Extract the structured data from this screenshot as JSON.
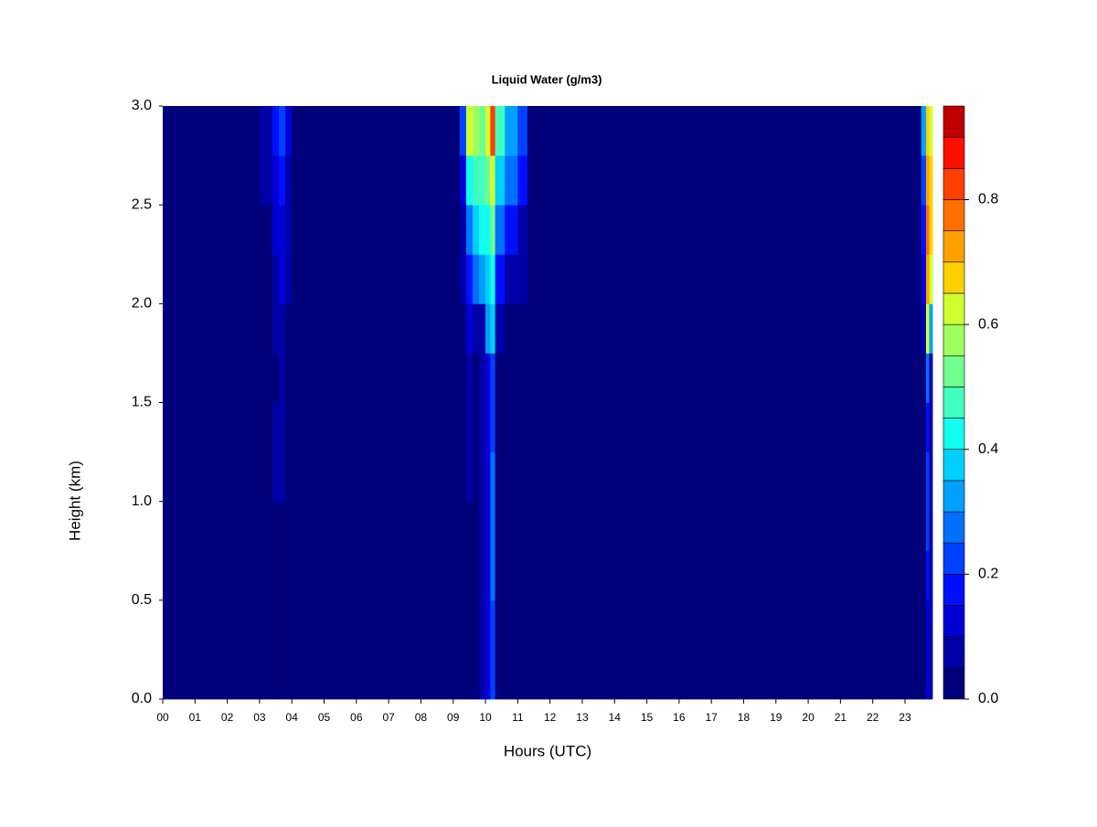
{
  "chart_data": {
    "type": "heatmap",
    "title": "Liquid Water (g/m3)",
    "x_label": "Hours (UTC)",
    "y_label": "Height (km)",
    "xlim": [
      0,
      23.85
    ],
    "ylim": [
      0,
      3
    ],
    "xticks": [
      {
        "value": 0,
        "label": "00"
      },
      {
        "value": 1,
        "label": "01"
      },
      {
        "value": 2,
        "label": "02"
      },
      {
        "value": 3,
        "label": "03"
      },
      {
        "value": 4,
        "label": "04"
      },
      {
        "value": 5,
        "label": "05"
      },
      {
        "value": 6,
        "label": "06"
      },
      {
        "value": 7,
        "label": "07"
      },
      {
        "value": 8,
        "label": "08"
      },
      {
        "value": 9,
        "label": "09"
      },
      {
        "value": 10,
        "label": "10"
      },
      {
        "value": 11,
        "label": "11"
      },
      {
        "value": 12,
        "label": "12"
      },
      {
        "value": 13,
        "label": "13"
      },
      {
        "value": 14,
        "label": "14"
      },
      {
        "value": 15,
        "label": "15"
      },
      {
        "value": 16,
        "label": "16"
      },
      {
        "value": 17,
        "label": "17"
      },
      {
        "value": 18,
        "label": "18"
      },
      {
        "value": 19,
        "label": "19"
      },
      {
        "value": 20,
        "label": "20"
      },
      {
        "value": 21,
        "label": "21"
      },
      {
        "value": 22,
        "label": "22"
      },
      {
        "value": 23,
        "label": "23"
      }
    ],
    "yticks": [
      {
        "value": 0,
        "label": "0.0"
      },
      0.5,
      {
        "value": 1,
        "label": "1.0"
      },
      1.5,
      {
        "value": 2,
        "label": "2.0"
      },
      2.5,
      {
        "value": 3,
        "label": "3.0"
      }
    ],
    "x_edges": [
      0,
      3.0,
      3.4,
      3.6,
      3.8,
      4.0,
      9.2,
      9.4,
      9.6,
      9.8,
      10.0,
      10.15,
      10.3,
      10.6,
      11.0,
      11.3,
      23.5,
      23.65,
      23.75,
      23.85
    ],
    "y_edges": [
      0,
      0.25,
      0.5,
      0.75,
      1.0,
      1.25,
      1.5,
      1.75,
      2.0,
      2.25,
      2.5,
      2.75,
      3.0
    ],
    "z": [
      [
        0.02,
        0.02,
        0.02,
        0.02,
        0.02,
        0.02,
        0.03,
        0.04,
        0.03,
        0.05,
        0.1,
        0.2,
        0.03,
        0.02,
        0.02,
        0.02,
        0.04,
        0.12,
        0.06
      ],
      [
        0.02,
        0.02,
        0.02,
        0.02,
        0.02,
        0.02,
        0.03,
        0.04,
        0.03,
        0.05,
        0.1,
        0.2,
        0.03,
        0.02,
        0.02,
        0.02,
        0.04,
        0.12,
        0.06
      ],
      [
        0.02,
        0.02,
        0.02,
        0.02,
        0.02,
        0.02,
        0.03,
        0.04,
        0.03,
        0.05,
        0.1,
        0.25,
        0.03,
        0.02,
        0.02,
        0.02,
        0.04,
        0.15,
        0.06
      ],
      [
        0.02,
        0.02,
        0.02,
        0.03,
        0.02,
        0.02,
        0.03,
        0.04,
        0.03,
        0.05,
        0.1,
        0.25,
        0.03,
        0.02,
        0.02,
        0.02,
        0.04,
        0.2,
        0.06
      ],
      [
        0.02,
        0.02,
        0.05,
        0.07,
        0.02,
        0.02,
        0.03,
        0.05,
        0.03,
        0.05,
        0.1,
        0.25,
        0.03,
        0.02,
        0.02,
        0.02,
        0.04,
        0.2,
        0.06
      ],
      [
        0.02,
        0.02,
        0.05,
        0.06,
        0.02,
        0.02,
        0.03,
        0.06,
        0.03,
        0.05,
        0.1,
        0.2,
        0.03,
        0.02,
        0.02,
        0.02,
        0.04,
        0.18,
        0.06
      ],
      [
        0.02,
        0.02,
        0.04,
        0.07,
        0.02,
        0.02,
        0.03,
        0.07,
        0.04,
        0.05,
        0.12,
        0.2,
        0.04,
        0.02,
        0.02,
        0.02,
        0.04,
        0.25,
        0.06
      ],
      [
        0.02,
        0.02,
        0.05,
        0.08,
        0.03,
        0.02,
        0.03,
        0.12,
        0.06,
        0.08,
        0.3,
        0.35,
        0.08,
        0.03,
        0.02,
        0.02,
        0.05,
        0.6,
        0.3
      ],
      [
        0.02,
        0.03,
        0.08,
        0.12,
        0.05,
        0.02,
        0.05,
        0.18,
        0.25,
        0.3,
        0.35,
        0.4,
        0.15,
        0.08,
        0.05,
        0.02,
        0.1,
        0.7,
        0.6
      ],
      [
        0.02,
        0.04,
        0.1,
        0.12,
        0.06,
        0.02,
        0.08,
        0.25,
        0.35,
        0.4,
        0.4,
        0.5,
        0.25,
        0.15,
        0.08,
        0.02,
        0.15,
        0.78,
        0.65
      ],
      [
        0.02,
        0.05,
        0.12,
        0.15,
        0.08,
        0.02,
        0.12,
        0.4,
        0.45,
        0.45,
        0.5,
        0.62,
        0.35,
        0.25,
        0.15,
        0.02,
        0.2,
        0.72,
        0.65
      ],
      [
        0.02,
        0.06,
        0.15,
        0.2,
        0.1,
        0.02,
        0.2,
        0.62,
        0.55,
        0.5,
        0.6,
        0.82,
        0.45,
        0.32,
        0.22,
        0.02,
        0.3,
        0.68,
        0.62
      ]
    ],
    "levels": [
      0,
      0.05,
      0.1,
      0.15,
      0.2,
      0.25,
      0.3,
      0.35,
      0.4,
      0.45,
      0.5,
      0.55,
      0.6,
      0.65,
      0.7,
      0.75,
      0.8,
      0.85,
      0.9,
      0.95
    ],
    "colors": [
      "#00007a",
      "#0000a8",
      "#0000d6",
      "#0010ff",
      "#0040ff",
      "#0070ff",
      "#00a0ff",
      "#00d0ff",
      "#10ffef",
      "#40ffbf",
      "#70ff8f",
      "#a0ff60",
      "#d0ff30",
      "#ffd000",
      "#ffa000",
      "#ff7000",
      "#ff4000",
      "#ff0f00",
      "#c00000",
      "#800000"
    ],
    "colorbar_ticks": [
      {
        "value": 0,
        "label": "0.0"
      },
      0.2,
      0.4,
      0.6,
      0.8
    ]
  }
}
